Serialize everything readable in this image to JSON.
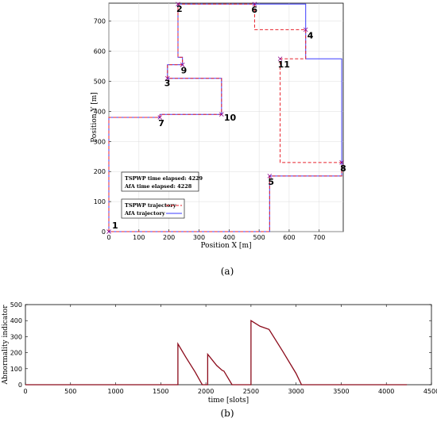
{
  "chart_data": [
    {
      "type": "line",
      "caption": "(a)",
      "xlabel": "Position X [m]",
      "ylabel": "Position Y [m]",
      "xlim": [
        0,
        780
      ],
      "ylim": [
        0,
        760
      ],
      "xticks": [
        0,
        100,
        200,
        300,
        400,
        500,
        600,
        700
      ],
      "yticks": [
        0,
        100,
        200,
        300,
        400,
        500,
        600,
        700
      ],
      "grid": true,
      "info_box": [
        "TSPWP time elapsed: 4229",
        "AfA time elapsed: 4228"
      ],
      "legend_placement": "lower-left",
      "series": [
        {
          "name": "TSPWP trajectory",
          "style": "dashed",
          "color": "#e8202a",
          "x": [
            0,
            0,
            170,
            170,
            375,
            375,
            195,
            195,
            245,
            245,
            230,
            230,
            485,
            485,
            655,
            655,
            570,
            570,
            775,
            775,
            535,
            535,
            0
          ],
          "y": [
            0,
            380,
            380,
            390,
            390,
            510,
            510,
            555,
            555,
            580,
            580,
            757,
            757,
            672,
            672,
            575,
            575,
            230,
            230,
            185,
            185,
            0,
            0
          ]
        },
        {
          "name": "AfA trajectory",
          "style": "solid",
          "color": "#3b3bff",
          "x": [
            0,
            0,
            170,
            170,
            375,
            375,
            195,
            195,
            245,
            245,
            230,
            230,
            485,
            485,
            655,
            655,
            775,
            775,
            535,
            535,
            0
          ],
          "y": [
            0,
            380,
            380,
            390,
            390,
            510,
            510,
            555,
            555,
            580,
            580,
            757,
            757,
            757,
            757,
            575,
            575,
            185,
            185,
            0,
            0
          ]
        }
      ],
      "waypoints": [
        {
          "label": "1",
          "x": 0,
          "y": 0
        },
        {
          "label": "2",
          "x": 230,
          "y": 757
        },
        {
          "label": "3",
          "x": 195,
          "y": 510
        },
        {
          "label": "4",
          "x": 655,
          "y": 672
        },
        {
          "label": "5",
          "x": 535,
          "y": 185
        },
        {
          "label": "6",
          "x": 485,
          "y": 757
        },
        {
          "label": "7",
          "x": 170,
          "y": 380
        },
        {
          "label": "8",
          "x": 775,
          "y": 230
        },
        {
          "label": "9",
          "x": 245,
          "y": 555
        },
        {
          "label": "10",
          "x": 375,
          "y": 390
        },
        {
          "label": "11",
          "x": 570,
          "y": 575
        }
      ]
    },
    {
      "type": "line",
      "caption": "(b)",
      "xlabel": "time [slots]",
      "ylabel": "Abnormality indicator",
      "xlim": [
        0,
        4500
      ],
      "ylim": [
        0,
        500
      ],
      "xticks": [
        0,
        500,
        1000,
        1500,
        2000,
        2500,
        3000,
        3500,
        4000,
        4500
      ],
      "yticks": [
        0,
        100,
        200,
        300,
        400,
        500
      ],
      "grid": false,
      "series": [
        {
          "color": "#8b0a1a",
          "x": [
            0,
            1690,
            1690,
            1780,
            1880,
            1960,
            1960,
            2020,
            2020,
            2120,
            2180,
            2200,
            2290,
            2290,
            2500,
            2500,
            2600,
            2700,
            2850,
            3000,
            3060,
            3060,
            4228
          ],
          "y": [
            0,
            0,
            255,
            170,
            80,
            0,
            0,
            0,
            190,
            120,
            90,
            85,
            0,
            0,
            0,
            400,
            365,
            345,
            210,
            70,
            0,
            0,
            0
          ]
        }
      ]
    }
  ]
}
